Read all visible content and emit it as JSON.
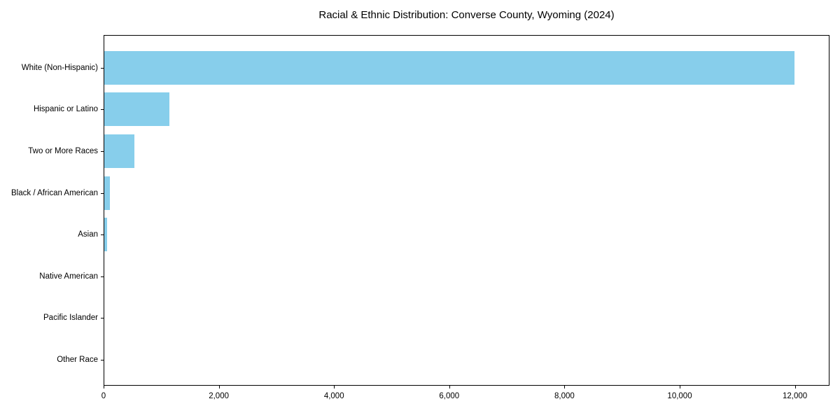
{
  "chart_data": {
    "type": "bar",
    "orientation": "horizontal",
    "title": "Racial & Ethnic Distribution: Converse County, Wyoming (2024)",
    "categories": [
      "White (Non-Hispanic)",
      "Hispanic or Latino",
      "Two or More Races",
      "Black / African American",
      "Asian",
      "Native American",
      "Pacific Islander",
      "Other Race"
    ],
    "values": [
      12000,
      1130,
      520,
      95,
      50,
      0,
      0,
      0
    ],
    "xlabel": "",
    "ylabel": "",
    "xlim": [
      0,
      12600
    ],
    "xticks": [
      0,
      2000,
      4000,
      6000,
      8000,
      10000,
      12000
    ],
    "xtick_labels": [
      "0",
      "2,000",
      "4,000",
      "6,000",
      "8,000",
      "10,000",
      "12,000"
    ],
    "bar_color": "#87CEEB",
    "axis_color": "#000000",
    "background_color": "#ffffff",
    "grid": false,
    "legend": "none"
  }
}
